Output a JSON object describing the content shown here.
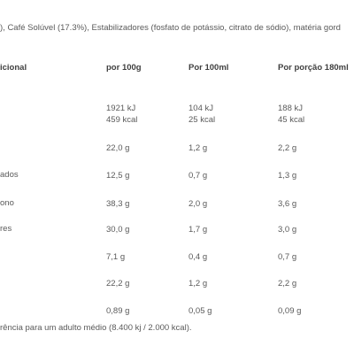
{
  "ingredients_line": "), Café Solúvel (17.3%), Estabilizadores (fosfato de potássio, citrato de sódio), matéria gord",
  "table": {
    "header": {
      "label": "icional",
      "col1": "por 100g",
      "col2": "Por 100ml",
      "col3": "Por porção 180ml"
    },
    "rows": [
      {
        "label": "",
        "col1": [
          "1921 kJ",
          "459 kcal"
        ],
        "col2": [
          "104 kJ",
          "25 kcal"
        ],
        "col3": [
          "188 kJ",
          "45 kcal"
        ]
      },
      {
        "label": "",
        "col1": [
          "22,0 g"
        ],
        "col2": [
          "1,2 g"
        ],
        "col3": [
          "2,2 g"
        ]
      },
      {
        "label": "ados",
        "col1": [
          "12,5 g"
        ],
        "col2": [
          "0,7 g"
        ],
        "col3": [
          "1,3 g"
        ]
      },
      {
        "label": "ono",
        "col1": [
          "38,3 g"
        ],
        "col2": [
          "2,0 g"
        ],
        "col3": [
          "3,6 g"
        ]
      },
      {
        "label": "res",
        "col1": [
          "30,0 g"
        ],
        "col2": [
          "1,7 g"
        ],
        "col3": [
          "3,0 g"
        ]
      },
      {
        "label": "",
        "col1": [
          "7,1 g"
        ],
        "col2": [
          "0,4 g"
        ],
        "col3": [
          "0,7 g"
        ]
      },
      {
        "label": "",
        "col1": [
          "22,2 g"
        ],
        "col2": [
          "1,2 g"
        ],
        "col3": [
          "2,2 g"
        ]
      },
      {
        "label": "",
        "col1": [
          "0,89 g"
        ],
        "col2": [
          "0,05 g"
        ],
        "col3": [
          "0,09 g"
        ]
      }
    ]
  },
  "footnote": "rência para um adulto médio (8.400 kj / 2.000 kcal)."
}
